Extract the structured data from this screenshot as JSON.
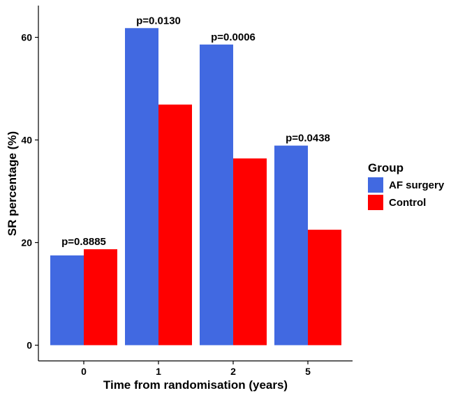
{
  "chart_data": {
    "type": "bar",
    "xlabel": "Time from randomisation (years)",
    "ylabel": "SR percentage (%)",
    "categories": [
      "0",
      "1",
      "2",
      "5"
    ],
    "series": [
      {
        "name": "AF surgery",
        "color": "#4169E1",
        "values": [
          17.5,
          61.8,
          58.6,
          38.9
        ]
      },
      {
        "name": "Control",
        "color": "#FF0000",
        "values": [
          18.7,
          46.9,
          36.4,
          22.5
        ]
      }
    ],
    "annotations": [
      "p=0.8885",
      "p=0.0130",
      "p=0.0006",
      "p=0.0438"
    ],
    "yticks": [
      0,
      20,
      40,
      60
    ],
    "ylim": [
      0,
      65
    ],
    "grid": false,
    "legend": {
      "title": "Group",
      "position": "right"
    }
  }
}
